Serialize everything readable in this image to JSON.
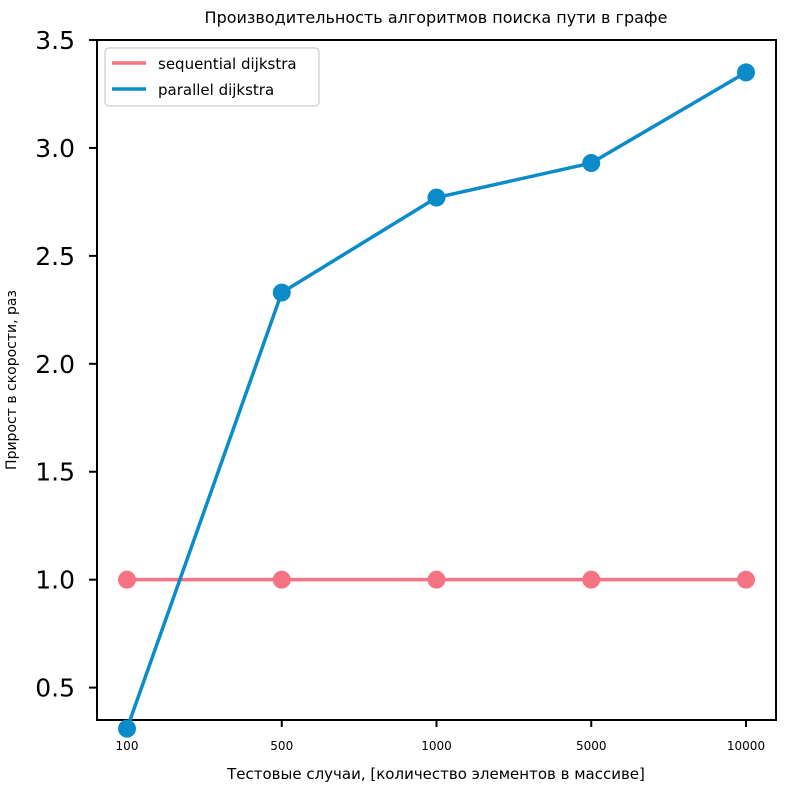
{
  "chart_data": {
    "type": "line",
    "title": "Производительность алгоритмов поиска пути в графе",
    "xlabel": "Тестовые случаи, [количество элементов в массиве]",
    "ylabel": "Прирост в скорости, раз",
    "categories": [
      "100",
      "500",
      "1000",
      "5000",
      "10000"
    ],
    "ylim": [
      0.35,
      3.5
    ],
    "yticks": [
      0.5,
      1.0,
      1.5,
      2.0,
      2.5,
      3.0,
      3.5
    ],
    "ytick_labels": [
      "0.5",
      "1.0",
      "1.5",
      "2.0",
      "2.5",
      "3.0",
      "3.5"
    ],
    "grid": false,
    "legend_position": "upper-left",
    "series": [
      {
        "name": "sequential dijkstra",
        "color": "#f57383",
        "values": [
          1.0,
          1.0,
          1.0,
          1.0,
          1.0
        ]
      },
      {
        "name": "parallel dijkstra",
        "color": "#0c8bca",
        "values": [
          0.31,
          2.33,
          2.77,
          2.93,
          3.35
        ]
      }
    ]
  }
}
